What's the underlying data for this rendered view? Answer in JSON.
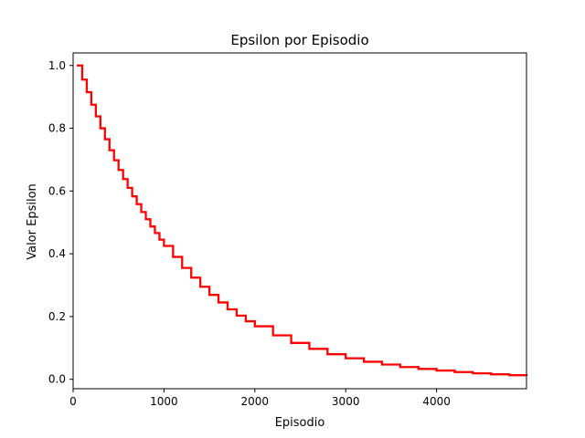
{
  "chart_data": {
    "type": "line",
    "title": "Epsilon por Episodio",
    "xlabel": "Episodio",
    "ylabel": "Valor Epsilon",
    "xlim": [
      0,
      4990
    ],
    "ylim": [
      -0.03,
      1.04
    ],
    "x_ticks": [
      0,
      1000,
      2000,
      3000,
      4000
    ],
    "y_ticks": [
      0.0,
      0.2,
      0.4,
      0.6,
      0.8,
      1.0
    ],
    "x_tick_labels": [
      "0",
      "1000",
      "2000",
      "3000",
      "4000"
    ],
    "y_tick_labels": [
      "0.0",
      "0.2",
      "0.4",
      "0.6",
      "0.8",
      "1.0"
    ],
    "grid": false,
    "legend": "none",
    "series": [
      {
        "color": "#ff0000",
        "step": "post",
        "x": [
          40,
          100,
          150,
          200,
          250,
          300,
          350,
          400,
          450,
          500,
          550,
          600,
          650,
          700,
          750,
          800,
          850,
          900,
          950,
          1000,
          1100,
          1200,
          1300,
          1400,
          1500,
          1600,
          1700,
          1800,
          1900,
          2000,
          2200,
          2400,
          2600,
          2800,
          3000,
          3200,
          3400,
          3600,
          3800,
          4000,
          4200,
          4400,
          4600,
          4800,
          4990
        ],
        "y": [
          1.0,
          0.955,
          0.915,
          0.875,
          0.838,
          0.8,
          0.765,
          0.73,
          0.698,
          0.667,
          0.638,
          0.61,
          0.583,
          0.558,
          0.533,
          0.51,
          0.487,
          0.466,
          0.445,
          0.425,
          0.39,
          0.355,
          0.324,
          0.295,
          0.269,
          0.245,
          0.223,
          0.203,
          0.185,
          0.169,
          0.14,
          0.116,
          0.097,
          0.08,
          0.067,
          0.056,
          0.047,
          0.039,
          0.033,
          0.028,
          0.023,
          0.019,
          0.016,
          0.013,
          0.011
        ]
      }
    ]
  }
}
